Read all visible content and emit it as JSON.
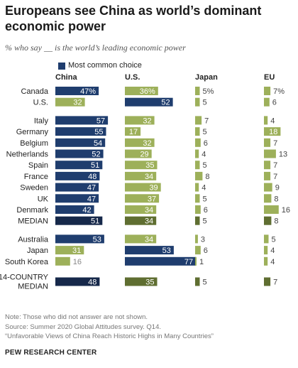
{
  "title": "Europeans see China as world’s dominant economic power",
  "subtitle": "% who say __ is the world’s leading economic power",
  "legend": {
    "label": "Most common choice",
    "color": "#1f3d6e"
  },
  "colors": {
    "china": "#1f3d6e",
    "us_choice": "#1f3d6e",
    "other": "#9db05a",
    "median_china": "#16284a",
    "median_other": "#5f6e31",
    "faded_text": "#888888"
  },
  "chart_data": {
    "type": "bar",
    "columns": [
      "China",
      "U.S.",
      "Japan",
      "EU"
    ],
    "groups": [
      {
        "rows": [
          {
            "label": "Canada",
            "china": "47%",
            "us": "36%",
            "japan": "5%",
            "eu": "7%",
            "most_common": "china"
          },
          {
            "label": "U.S.",
            "china": 32,
            "us": 52,
            "japan": 5,
            "eu": 6,
            "most_common": "us"
          }
        ]
      },
      {
        "rows": [
          {
            "label": "Italy",
            "china": 57,
            "us": 32,
            "japan": 7,
            "eu": 4,
            "most_common": "china"
          },
          {
            "label": "Germany",
            "china": 55,
            "us": 17,
            "japan": 5,
            "eu": 18,
            "most_common": "china"
          },
          {
            "label": "Belgium",
            "china": 54,
            "us": 32,
            "japan": 6,
            "eu": 7,
            "most_common": "china"
          },
          {
            "label": "Netherlands",
            "china": 52,
            "us": 29,
            "japan": 4,
            "eu": 13,
            "most_common": "china"
          },
          {
            "label": "Spain",
            "china": 51,
            "us": 35,
            "japan": 5,
            "eu": 7,
            "most_common": "china"
          },
          {
            "label": "France",
            "china": 48,
            "us": 34,
            "japan": 8,
            "eu": 7,
            "most_common": "china"
          },
          {
            "label": "Sweden",
            "china": 47,
            "us": 39,
            "japan": 4,
            "eu": 9,
            "most_common": "china"
          },
          {
            "label": "UK",
            "china": 47,
            "us": 37,
            "japan": 5,
            "eu": 8,
            "most_common": "china"
          },
          {
            "label": "Denmark",
            "china": 42,
            "us": 34,
            "japan": 6,
            "eu": 16,
            "most_common": "china"
          },
          {
            "label": "MEDIAN",
            "china": 51,
            "us": 34,
            "japan": 5,
            "eu": 8,
            "most_common": "china",
            "median": true
          }
        ]
      },
      {
        "rows": [
          {
            "label": "Australia",
            "china": 53,
            "us": 34,
            "japan": 3,
            "eu": 5,
            "most_common": "china"
          },
          {
            "label": "Japan",
            "china": 31,
            "us": 53,
            "japan": 6,
            "eu": 4,
            "most_common": "us"
          },
          {
            "label": "South Korea",
            "china": 16,
            "us": 77,
            "japan": 1,
            "eu": 4,
            "most_common": "us"
          }
        ]
      },
      {
        "rows": [
          {
            "label": "14-COUNTRY MEDIAN",
            "label_lines": [
              "14-COUNTRY",
              "MEDIAN"
            ],
            "china": 48,
            "us": 35,
            "japan": 5,
            "eu": 7,
            "most_common": "china",
            "median": true
          }
        ]
      }
    ]
  },
  "notes": [
    "Note: Those who did not answer are not shown.",
    "Source: Summer 2020 Global Attitudes survey. Q14.",
    "“Unfavorable Views of China Reach Historic Highs in Many Countries”"
  ],
  "brand": "PEW RESEARCH CENTER"
}
